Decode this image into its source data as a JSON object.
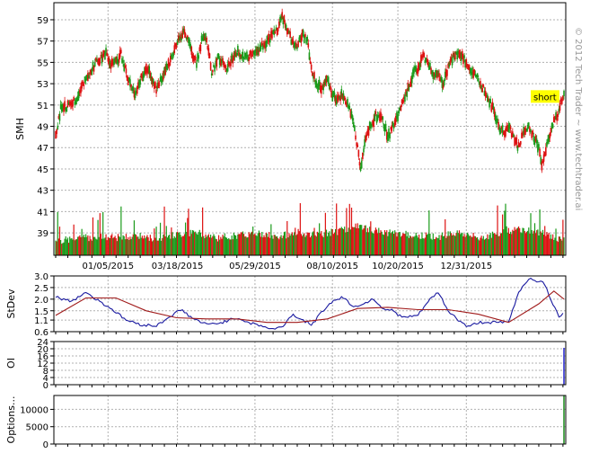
{
  "watermark": "© 2012 Tech Trader ~ www.techtrader.ai",
  "chart_data": [
    {
      "type": "candlestick",
      "panel": "price",
      "ylabel": "SMH",
      "yticks": [
        39,
        41,
        43,
        45,
        47,
        49,
        51,
        53,
        55,
        57,
        59
      ],
      "ylim": [
        36.9,
        60.6
      ],
      "x_dates": [
        "01/05/2015",
        "03/18/2015",
        "05/29/2015",
        "08/10/2015",
        "10/20/2015",
        "12/31/2015"
      ],
      "grid": true,
      "colors": {
        "up": "#1a9a1a",
        "down": "#dd1111"
      },
      "annotation": {
        "text": "short",
        "background": "#ffff00",
        "date_label": "after 12/31/2015"
      },
      "price_path": [
        [
          0,
          48.1
        ],
        [
          5,
          50.6
        ],
        [
          10,
          50.8
        ],
        [
          20,
          51.5
        ],
        [
          30,
          53.5
        ],
        [
          40,
          55.0
        ],
        [
          50,
          56.0
        ],
        [
          55,
          54.8
        ],
        [
          60,
          55.0
        ],
        [
          65,
          55.8
        ],
        [
          70,
          54.0
        ],
        [
          78,
          52.0
        ],
        [
          85,
          53.5
        ],
        [
          92,
          54.5
        ],
        [
          100,
          52.5
        ],
        [
          108,
          54.0
        ],
        [
          115,
          55.5
        ],
        [
          122,
          57.0
        ],
        [
          128,
          58.0
        ],
        [
          135,
          56.0
        ],
        [
          140,
          55.0
        ],
        [
          145,
          57.0
        ],
        [
          150,
          57.3
        ],
        [
          155,
          54.0
        ],
        [
          162,
          55.5
        ],
        [
          170,
          54.5
        ],
        [
          180,
          56.0
        ],
        [
          190,
          55.5
        ],
        [
          200,
          56.0
        ],
        [
          210,
          57.0
        ],
        [
          215,
          57.5
        ],
        [
          220,
          58.0
        ],
        [
          225,
          59.4
        ],
        [
          230,
          58.0
        ],
        [
          235,
          57.0
        ],
        [
          240,
          56.5
        ],
        [
          245,
          57.7
        ],
        [
          250,
          57.0
        ],
        [
          255,
          54.0
        ],
        [
          260,
          53.0
        ],
        [
          265,
          52.5
        ],
        [
          270,
          53.5
        ],
        [
          275,
          52.0
        ],
        [
          280,
          51.5
        ],
        [
          285,
          52.0
        ],
        [
          290,
          51.0
        ],
        [
          295,
          50.0
        ],
        [
          298,
          48.0
        ],
        [
          300,
          47.0
        ],
        [
          303,
          45.0
        ],
        [
          306,
          47.0
        ],
        [
          310,
          48.5
        ],
        [
          318,
          50.0
        ],
        [
          325,
          49.5
        ],
        [
          330,
          48.0
        ],
        [
          335,
          49.0
        ],
        [
          340,
          50.0
        ],
        [
          345,
          51.5
        ],
        [
          350,
          52.5
        ],
        [
          355,
          54.0
        ],
        [
          360,
          54.5
        ],
        [
          365,
          55.5
        ],
        [
          370,
          55.0
        ],
        [
          375,
          53.5
        ],
        [
          380,
          54.0
        ],
        [
          385,
          53.0
        ],
        [
          390,
          54.5
        ],
        [
          395,
          55.5
        ],
        [
          400,
          56.0
        ],
        [
          405,
          55.5
        ],
        [
          410,
          54.5
        ],
        [
          415,
          54.0
        ],
        [
          420,
          53.5
        ],
        [
          425,
          52.5
        ],
        [
          430,
          51.5
        ],
        [
          435,
          50.5
        ],
        [
          440,
          49.0
        ],
        [
          445,
          48.5
        ],
        [
          450,
          49.0
        ],
        [
          455,
          48.0
        ],
        [
          460,
          47.0
        ],
        [
          465,
          48.5
        ],
        [
          470,
          49.0
        ],
        [
          475,
          48.0
        ],
        [
          480,
          47.0
        ],
        [
          483,
          45.5
        ],
        [
          486,
          46.5
        ],
        [
          490,
          48.0
        ],
        [
          495,
          49.5
        ],
        [
          500,
          50.5
        ],
        [
          503,
          51.5
        ],
        [
          505,
          52.0
        ]
      ],
      "volume_path": [
        [
          0,
          38.1
        ],
        [
          20,
          38.3
        ],
        [
          40,
          38.5
        ],
        [
          60,
          38.4
        ],
        [
          80,
          38.6
        ],
        [
          100,
          38.3
        ],
        [
          120,
          38.7
        ],
        [
          140,
          38.9
        ],
        [
          160,
          38.4
        ],
        [
          180,
          38.6
        ],
        [
          200,
          38.8
        ],
        [
          220,
          38.5
        ],
        [
          240,
          38.9
        ],
        [
          260,
          38.7
        ],
        [
          280,
          39.0
        ],
        [
          300,
          39.5
        ],
        [
          320,
          39.0
        ],
        [
          340,
          38.8
        ],
        [
          360,
          38.6
        ],
        [
          380,
          38.5
        ],
        [
          400,
          38.9
        ],
        [
          420,
          38.4
        ],
        [
          440,
          38.8
        ],
        [
          460,
          39.2
        ],
        [
          480,
          38.9
        ],
        [
          505,
          38.2
        ]
      ]
    },
    {
      "type": "line",
      "panel": "stdev",
      "ylabel": "StDev",
      "yticks": [
        "0.6",
        "1.1",
        "1.5",
        "2.0",
        "2.5",
        "3.0"
      ],
      "ylim": [
        0.6,
        3.0
      ],
      "series": [
        {
          "color": "#1a1aa0",
          "values": [
            [
              0,
              2.1
            ],
            [
              15,
              1.9
            ],
            [
              30,
              2.3
            ],
            [
              40,
              2.0
            ],
            [
              55,
              1.6
            ],
            [
              70,
              1.1
            ],
            [
              85,
              0.9
            ],
            [
              100,
              0.85
            ],
            [
              115,
              1.3
            ],
            [
              125,
              1.55
            ],
            [
              135,
              1.2
            ],
            [
              150,
              0.9
            ],
            [
              165,
              1.0
            ],
            [
              180,
              1.2
            ],
            [
              195,
              0.95
            ],
            [
              205,
              0.85
            ],
            [
              215,
              0.7
            ],
            [
              225,
              0.8
            ],
            [
              235,
              1.35
            ],
            [
              245,
              1.1
            ],
            [
              255,
              0.9
            ],
            [
              265,
              1.5
            ],
            [
              275,
              1.9
            ],
            [
              285,
              2.1
            ],
            [
              295,
              1.7
            ],
            [
              305,
              1.75
            ],
            [
              315,
              2.05
            ],
            [
              325,
              1.6
            ],
            [
              335,
              1.5
            ],
            [
              345,
              1.2
            ],
            [
              360,
              1.3
            ],
            [
              370,
              1.9
            ],
            [
              380,
              2.3
            ],
            [
              390,
              1.5
            ],
            [
              400,
              1.1
            ],
            [
              410,
              0.8
            ],
            [
              420,
              1.0
            ],
            [
              435,
              1.0
            ],
            [
              450,
              1.0
            ],
            [
              460,
              2.3
            ],
            [
              470,
              2.9
            ],
            [
              485,
              2.7
            ],
            [
              500,
              1.2
            ],
            [
              505,
              1.5
            ]
          ]
        },
        {
          "color": "#a01a1a",
          "values": [
            [
              0,
              1.3
            ],
            [
              30,
              2.05
            ],
            [
              60,
              2.05
            ],
            [
              90,
              1.5
            ],
            [
              120,
              1.2
            ],
            [
              150,
              1.15
            ],
            [
              180,
              1.15
            ],
            [
              210,
              1.0
            ],
            [
              240,
              1.0
            ],
            [
              270,
              1.15
            ],
            [
              300,
              1.6
            ],
            [
              330,
              1.65
            ],
            [
              360,
              1.55
            ],
            [
              390,
              1.55
            ],
            [
              420,
              1.35
            ],
            [
              450,
              1.0
            ],
            [
              480,
              1.8
            ],
            [
              495,
              2.35
            ],
            [
              505,
              2.0
            ]
          ]
        }
      ]
    },
    {
      "type": "bar",
      "panel": "oi",
      "ylabel": "OI",
      "yticks": [
        0,
        4,
        8,
        12,
        16,
        20,
        24
      ],
      "ylim": [
        0,
        24
      ],
      "color": "#2222cc",
      "bars": [
        [
          505,
          20.5
        ]
      ]
    },
    {
      "type": "bar",
      "panel": "options",
      "ylabel": "Options...",
      "yticks": [
        0,
        5000,
        10000
      ],
      "ylim": [
        0,
        14000
      ],
      "color": "#1a8a1a",
      "bars": [
        [
          505,
          14000
        ]
      ]
    }
  ]
}
